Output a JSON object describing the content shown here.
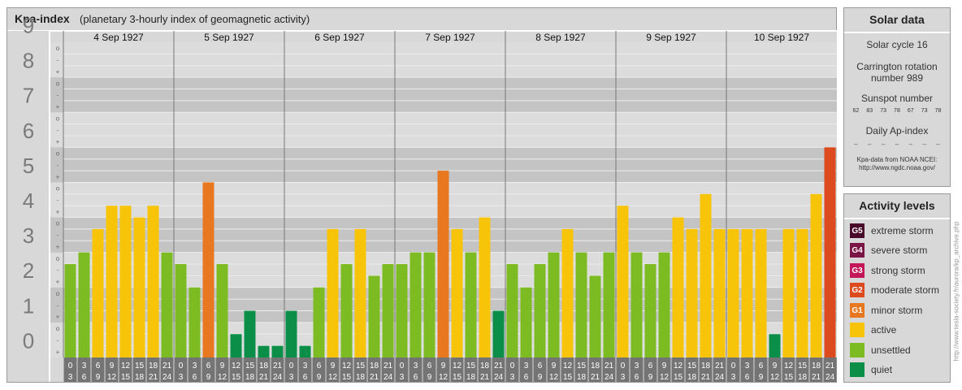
{
  "title": "Kpa-index",
  "subtitle": "(planetary 3-hourly index of geomagnetic activity)",
  "colors": {
    "quiet": "#0b8f48",
    "unsettled": "#7dbb22",
    "active": "#f7c40a",
    "G1": "#e8781f",
    "G2": "#dd4a1e",
    "G3": "#c3175a",
    "G4": "#7a1445",
    "G5": "#4a0a2a"
  },
  "chart_data": {
    "type": "bar",
    "ylim": [
      0,
      9
    ],
    "y_ticks": [
      "0",
      "1",
      "2",
      "3",
      "4",
      "5",
      "6",
      "7",
      "8",
      "9"
    ],
    "minor_ticks": [
      "+",
      "-",
      "o"
    ],
    "days": [
      "4 Sep 1927",
      "5 Sep 1927",
      "6 Sep 1927",
      "7 Sep 1927",
      "8 Sep 1927",
      "9 Sep 1927",
      "10 Sep 1927"
    ],
    "interval_start": [
      "0",
      "3",
      "6",
      "9",
      "12",
      "15",
      "18",
      "21"
    ],
    "interval_end": [
      "3",
      "6",
      "9",
      "12",
      "15",
      "18",
      "21",
      "24"
    ],
    "values": [
      [
        2.667,
        3.0,
        3.667,
        4.333,
        4.333,
        4.0,
        4.333,
        3.0
      ],
      [
        2.667,
        2.0,
        5.0,
        2.667,
        0.667,
        1.333,
        0.333,
        0.333
      ],
      [
        1.333,
        0.333,
        2.0,
        3.667,
        2.667,
        3.667,
        2.333,
        2.667
      ],
      [
        2.667,
        3.0,
        3.0,
        5.333,
        3.667,
        3.0,
        4.0,
        1.333
      ],
      [
        2.667,
        2.0,
        2.667,
        3.0,
        3.667,
        3.0,
        2.333,
        3.0
      ],
      [
        4.333,
        3.0,
        2.667,
        3.0,
        4.0,
        3.667,
        4.667,
        3.667
      ],
      [
        3.667,
        3.667,
        3.667,
        0.667,
        3.667,
        3.667,
        4.667,
        6.0
      ]
    ]
  },
  "side": {
    "title": "Solar data",
    "solar_cycle": "Solar cycle 16",
    "carrington_1": "Carrington rotation",
    "carrington_2": "number 989",
    "sunspot_label": "Sunspot number",
    "sunspots": [
      "62",
      "83",
      "73",
      "78",
      "67",
      "73",
      "78"
    ],
    "ap_label": "Daily Ap-index",
    "ap_values": [
      "--",
      "--",
      "--",
      "--",
      "--",
      "--",
      "--"
    ],
    "credit_1": "Kpa-data from NOAA NCEI:",
    "credit_2": "http://www.ngdc.noaa.gov/"
  },
  "levels": {
    "title": "Activity levels",
    "items": [
      {
        "badge": "G5",
        "label": "extreme storm",
        "color": "#4a0a2a"
      },
      {
        "badge": "G4",
        "label": "severe storm",
        "color": "#7a1445"
      },
      {
        "badge": "G3",
        "label": "strong storm",
        "color": "#c3175a"
      },
      {
        "badge": "G2",
        "label": "moderate storm",
        "color": "#dd4a1e"
      },
      {
        "badge": "G1",
        "label": "minor storm",
        "color": "#e8781f"
      },
      {
        "badge": "",
        "label": "active",
        "color": "#f7c40a"
      },
      {
        "badge": "",
        "label": "unsettled",
        "color": "#7dbb22"
      },
      {
        "badge": "",
        "label": "quiet",
        "color": "#0b8f48"
      }
    ]
  },
  "vertical_credit": "http://www.tesla-society.fr/aurora/kp_archive.php"
}
